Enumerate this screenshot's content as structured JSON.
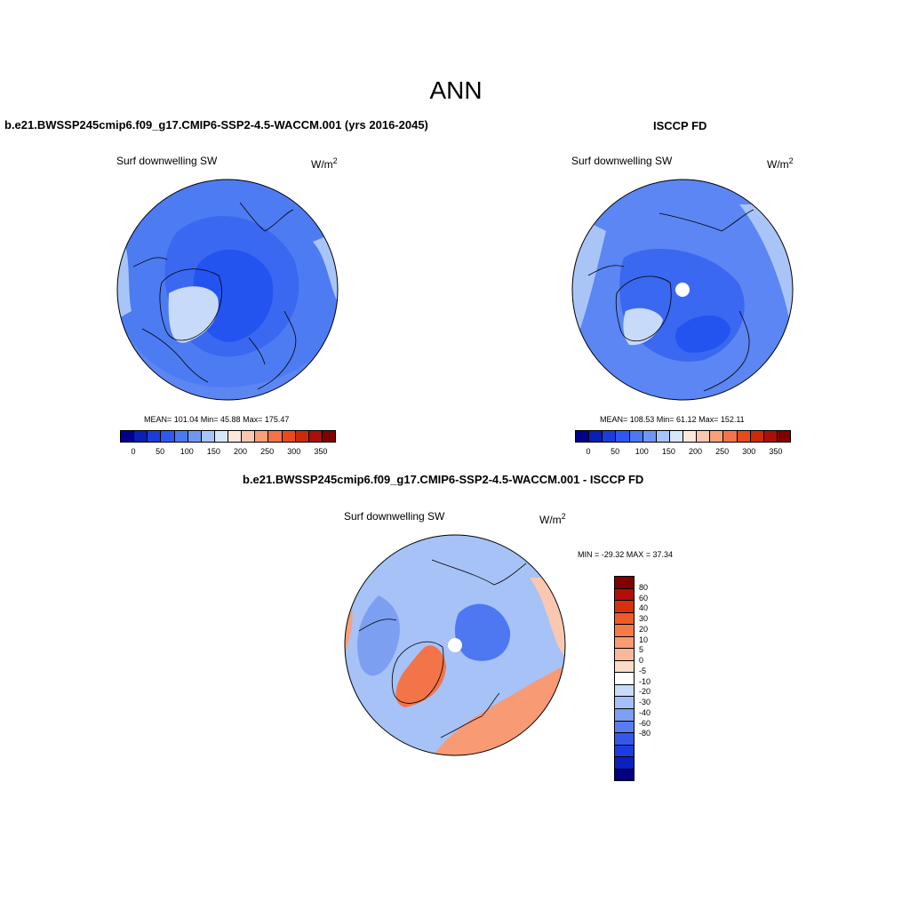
{
  "page": {
    "title": "ANN"
  },
  "panels": [
    {
      "id": "model",
      "title": "b.e21.BWSSP245cmip6.f09_g17.CMIP6-SSP2-4.5-WACCM.001 (yrs 2016-2045)",
      "variable": "Surf downwelling SW",
      "units": "W/m",
      "units_exp": "2",
      "stats": "MEAN= 101.04  Min=  45.88  Max= 175.47"
    },
    {
      "id": "obs",
      "title": "ISCCP FD",
      "variable": "Surf downwelling SW",
      "units": "W/m",
      "units_exp": "2",
      "stats": "MEAN= 108.53  Min=  61.12  Max= 152.11"
    },
    {
      "id": "diff",
      "title": "b.e21.BWSSP245cmip6.f09_g17.CMIP6-SSP2-4.5-WACCM.001 - ISCCP FD",
      "variable": "Surf downwelling SW",
      "units": "W/m",
      "units_exp": "2",
      "stats": "MIN = -29.32 MAX =  37.34"
    }
  ],
  "colorbar_abs": {
    "colors": [
      "#00008b",
      "#0a1fb4",
      "#1c3cdc",
      "#2e58f0",
      "#4c78f2",
      "#7096f4",
      "#a6c4f8",
      "#d8e6fa",
      "#fde8dc",
      "#fac8b0",
      "#f8a07c",
      "#f27448",
      "#e84a1e",
      "#cd2a0a",
      "#a81008",
      "#800000"
    ],
    "labels": [
      "0",
      "50",
      "100",
      "150",
      "200",
      "250",
      "300",
      "350"
    ]
  },
  "colorbar_diff": {
    "colors": [
      "#800000",
      "#b01008",
      "#d8300a",
      "#f05a28",
      "#f47a48",
      "#f89a74",
      "#fab89a",
      "#fcdcc8",
      "#ffffff",
      "#c8dcf8",
      "#a4c0f6",
      "#7c9ff2",
      "#5a7cf0",
      "#3458ec",
      "#1c3ce0",
      "#0a20c0",
      "#000080"
    ],
    "labels": [
      "80",
      "60",
      "40",
      "30",
      "20",
      "10",
      "5",
      "0",
      "-5",
      "-10",
      "-20",
      "-30",
      "-40",
      "-60",
      "-80"
    ]
  }
}
